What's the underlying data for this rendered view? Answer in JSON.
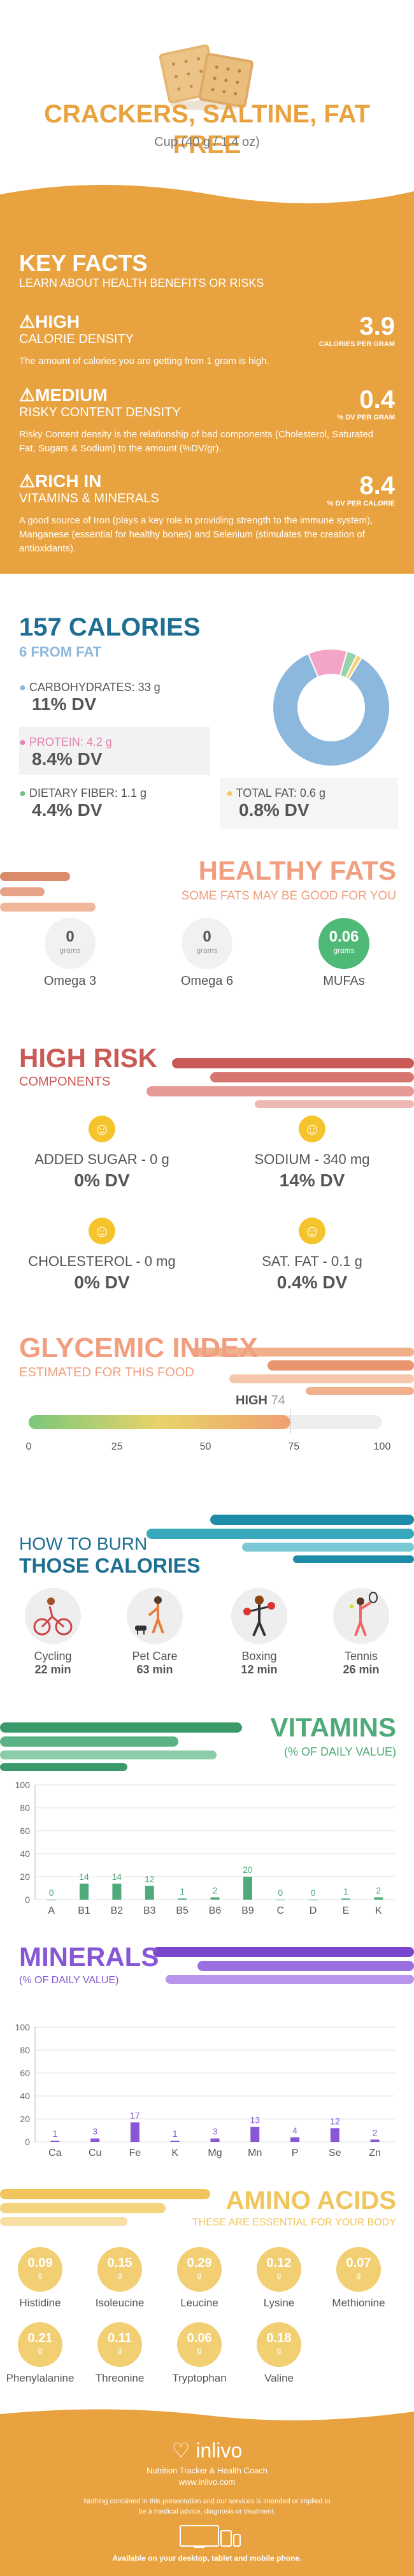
{
  "header": {
    "title": "CRACKERS, SALTINE, FAT FREE",
    "serving": "Cup (40 g / 1.4 oz)"
  },
  "key_facts": {
    "title": "KEY FACTS",
    "subtitle": "LEARN ABOUT HEALTH BENEFITS OR RISKS",
    "items": [
      {
        "level": "HIGH",
        "label": "CALORIE DENSITY",
        "value": "3.9",
        "unit": "CALORIES PER GRAM",
        "desc": "The amount of calories you are getting from 1 gram is high."
      },
      {
        "level": "MEDIUM",
        "label": "RISKY CONTENT DENSITY",
        "value": "0.4",
        "unit": "% DV PER GRAM",
        "desc": "Risky Content density is the relationship of bad components (Cholesterol, Saturated Fat, Sugars & Sodium) to the amount (%DV/gr)."
      },
      {
        "level": "RICH IN",
        "label": "VITAMINS & MINERALS",
        "value": "8.4",
        "unit": "% DV PER CALORIE",
        "desc": "A good source of Iron (plays a key role in providing strength to the immune system), Manganese (essential for healthy bones) and Selenium (stimulates the creation of antioxidants)."
      }
    ]
  },
  "calories": {
    "title": "157 CALORIES",
    "from_fat": "6 FROM FAT",
    "macros": [
      {
        "label": "CARBOHYDRATES: 33 g",
        "dv": "11% DV",
        "color": "#8db8de"
      },
      {
        "label": "PROTEIN: 4.2 g",
        "dv": "8.4% DV",
        "color": "#f3a5c8"
      },
      {
        "label": "DIETARY FIBER: 1.1 g",
        "dv": "4.4% DV",
        "color": "#98d3a9"
      },
      {
        "label": "TOTAL FAT: 0.6 g",
        "dv": "0.8% DV",
        "color": "#f5d27c"
      }
    ],
    "chart_data": {
      "type": "pie",
      "categories": [
        "Carbohydrates",
        "Protein",
        "Dietary Fiber",
        "Total Fat"
      ],
      "values": [
        33,
        4.2,
        1.1,
        0.6
      ]
    }
  },
  "healthy_fats": {
    "title": "HEALTHY FATS",
    "subtitle": "SOME FATS MAY BE GOOD FOR YOU",
    "items": [
      {
        "value": "0",
        "unit": "grams",
        "name": "Omega 3"
      },
      {
        "value": "0",
        "unit": "grams",
        "name": "Omega 6"
      },
      {
        "value": "0.06",
        "unit": "grams",
        "name": "MUFAs"
      }
    ]
  },
  "high_risk": {
    "title": "HIGH RISK",
    "subtitle": "COMPONENTS",
    "items": [
      {
        "label": "ADDED SUGAR - 0 g",
        "dv": "0% DV"
      },
      {
        "label": "SODIUM - 340 mg",
        "dv": "14% DV"
      },
      {
        "label": "CHOLESTEROL - 0 mg",
        "dv": "0% DV"
      },
      {
        "label": "SAT. FAT - 0.1 g",
        "dv": "0.4% DV"
      }
    ]
  },
  "glycemic": {
    "title": "GLYCEMIC INDEX",
    "subtitle": "ESTIMATED FOR THIS FOOD",
    "level": "HIGH",
    "value": "74",
    "gi": 74,
    "ticks": [
      "0",
      "25",
      "50",
      "75",
      "100"
    ]
  },
  "burn": {
    "title1": "HOW TO BURN",
    "title2": "THOSE CALORIES",
    "items": [
      {
        "name": "Cycling",
        "time": "22 min"
      },
      {
        "name": "Pet Care",
        "time": "63 min"
      },
      {
        "name": "Boxing",
        "time": "12 min"
      },
      {
        "name": "Tennis",
        "time": "26 min"
      }
    ]
  },
  "vitamins": {
    "title": "VITAMINS",
    "subtitle": "(% OF DAILY VALUE)",
    "chart_data": {
      "type": "bar",
      "categories": [
        "A",
        "B1",
        "B2",
        "B3",
        "B5",
        "B6",
        "B9",
        "C",
        "D",
        "E",
        "K"
      ],
      "values": [
        0,
        14,
        14,
        12,
        1,
        2,
        20,
        0,
        0,
        1,
        2
      ],
      "ylim": [
        0,
        100
      ],
      "yticks": [
        "0",
        "20",
        "40",
        "60",
        "80",
        "100"
      ]
    }
  },
  "minerals": {
    "title": "MINERALS",
    "subtitle": "(% OF DAILY VALUE)",
    "chart_data": {
      "type": "bar",
      "categories": [
        "Ca",
        "Cu",
        "Fe",
        "K",
        "Mg",
        "Mn",
        "P",
        "Se",
        "Zn"
      ],
      "values": [
        1,
        3,
        17,
        1,
        3,
        13,
        4,
        12,
        2
      ],
      "ylim": [
        0,
        100
      ],
      "yticks": [
        "0",
        "20",
        "40",
        "60",
        "80",
        "100"
      ]
    }
  },
  "amino": {
    "title": "AMINO ACIDS",
    "subtitle": "THESE ARE ESSENTIAL FOR YOUR BODY",
    "unit": "g",
    "items": [
      {
        "value": "0.09",
        "name": "Histidine"
      },
      {
        "value": "0.15",
        "name": "Isoleucine"
      },
      {
        "value": "0.29",
        "name": "Leucine"
      },
      {
        "value": "0.12",
        "name": "Lysine"
      },
      {
        "value": "0.07",
        "name": "Methionine"
      },
      {
        "value": "0.21",
        "name": "Phenylalanine"
      },
      {
        "value": "0.11",
        "name": "Threonine"
      },
      {
        "value": "0.06",
        "name": "Tryptophan"
      },
      {
        "value": "0.18",
        "name": "Valine"
      }
    ]
  },
  "footer": {
    "brand": "inlivo",
    "tagline": "Nutrition Tracker & Health Coach",
    "url": "www.inlivo.com",
    "disclaimer": "Nothing contained in this presentation and our services is intended or implied to be a medical advice, diagnosis or treatment.",
    "available": "Available on your desktop, tablet and mobile phone."
  },
  "colors": {
    "orange": "#e8a23f",
    "red": "#e06a5c",
    "salmon": "#f0a080",
    "green": "#4faa79",
    "blue": "#1f6f93",
    "purple": "#8757d6",
    "gold": "#f0c55b"
  }
}
